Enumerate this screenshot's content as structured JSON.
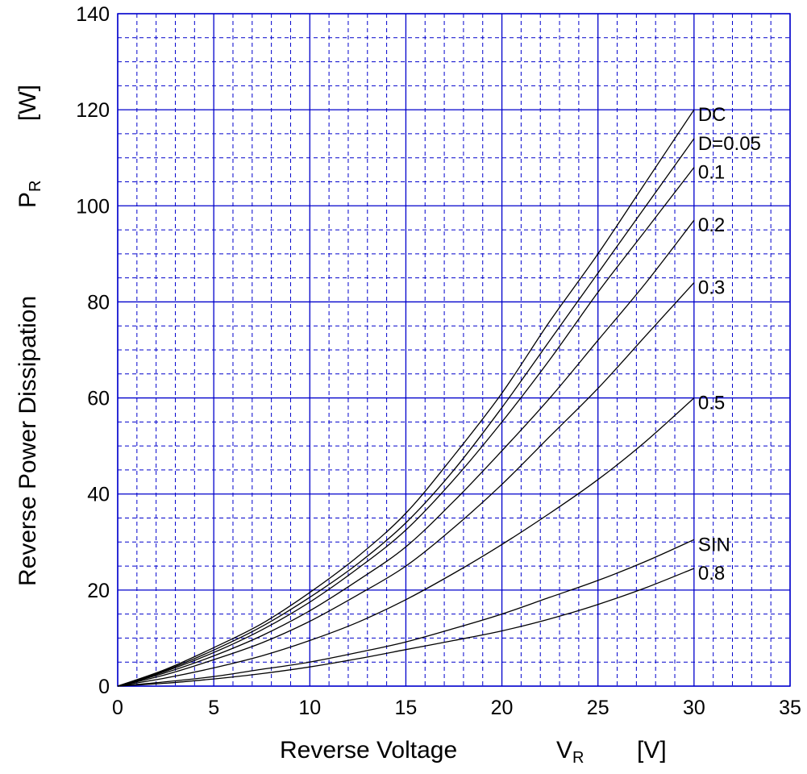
{
  "chart_data": {
    "type": "line",
    "title": "",
    "xlabel": {
      "text": "Reverse Voltage",
      "symbol": "V",
      "subscript": "R",
      "unit": "[V]"
    },
    "ylabel": {
      "text": "Reverse Power Dissipation",
      "symbol": "P",
      "subscript": "R",
      "unit": "[W]"
    },
    "xlim": [
      0,
      35
    ],
    "ylim": [
      0,
      140
    ],
    "x_ticks": [
      0,
      5,
      10,
      15,
      20,
      25,
      30,
      35
    ],
    "y_ticks": [
      0,
      20,
      40,
      60,
      80,
      100,
      120,
      140
    ],
    "x_minor_step": 1,
    "y_minor_step": 5,
    "grid": true,
    "colors": {
      "grid_major": "#0000cc",
      "grid_minor": "#0000cc",
      "curve": "#000000",
      "frame": "#0000cc"
    },
    "x": [
      0,
      2.5,
      5,
      7.5,
      10,
      12.5,
      15,
      17.5,
      20,
      22.5,
      25,
      27.5,
      30
    ],
    "series": [
      {
        "name": "DC",
        "values": [
          0,
          3.5,
          8,
          13,
          19.5,
          27,
          36,
          48,
          61,
          76,
          90,
          105,
          120
        ]
      },
      {
        "name": "D=0.05",
        "values": [
          0,
          3.3,
          7.5,
          12.4,
          18.5,
          25.5,
          34,
          45,
          58,
          72,
          86,
          100,
          114
        ]
      },
      {
        "name": "0.1",
        "values": [
          0,
          3.1,
          7,
          11.7,
          17.5,
          24.5,
          32.5,
          43,
          55,
          68,
          82,
          95,
          108
        ]
      },
      {
        "name": "0.2",
        "values": [
          0,
          2.8,
          6.3,
          10.5,
          15.7,
          22,
          29,
          38.5,
          49,
          60,
          72,
          84,
          97
        ]
      },
      {
        "name": "0.3",
        "values": [
          0,
          2.4,
          5.5,
          9,
          13.5,
          19,
          25,
          33,
          42,
          52,
          62,
          73,
          84
        ]
      },
      {
        "name": "0.5",
        "values": [
          0,
          1.7,
          3.8,
          6.3,
          9.5,
          13.3,
          18,
          23.5,
          29.5,
          36,
          43,
          51,
          60
        ]
      },
      {
        "name": "SIN",
        "values": [
          0,
          0.9,
          2,
          3.5,
          5,
          7,
          9.2,
          12,
          15,
          18.5,
          22,
          26,
          30.5
        ]
      },
      {
        "name": "0.8",
        "values": [
          0,
          0.6,
          1.5,
          2.6,
          4,
          5.7,
          7.6,
          9.5,
          11.5,
          14,
          17,
          20.5,
          24.5
        ]
      }
    ]
  }
}
